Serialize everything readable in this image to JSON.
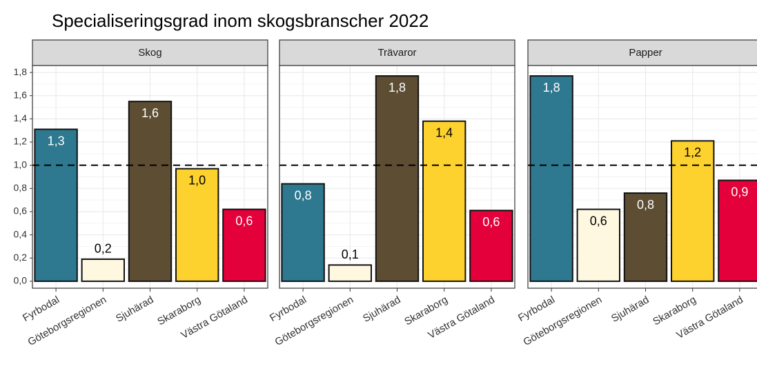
{
  "title": "Specialiseringsgrad inom skogsbranscher  2022",
  "chart_data": [
    {
      "type": "bar",
      "title": "Skog",
      "categories": [
        "Fyrbodal",
        "Göteborgsregionen",
        "Sjuhärad",
        "Skaraborg",
        "Västra Götaland"
      ],
      "values": [
        1.31,
        0.19,
        1.55,
        0.97,
        0.62
      ],
      "value_labels": [
        "1,3",
        "0,2",
        "1,6",
        "1,0",
        "0,6"
      ],
      "colors": [
        "#2e7890",
        "#fff8e1",
        "#5c4d33",
        "#fdd22e",
        "#e4003a"
      ],
      "reference_line": 1,
      "ylim": [
        -0.06,
        1.86
      ],
      "yticks": [
        {
          "value": 0,
          "label": "0,0"
        },
        {
          "value": 0.2,
          "label": "0,2"
        },
        {
          "value": 0.4,
          "label": "0,4"
        },
        {
          "value": 0.6,
          "label": "0,6"
        },
        {
          "value": 0.8,
          "label": "0,8"
        },
        {
          "value": 1,
          "label": "1,0"
        },
        {
          "value": 1.2,
          "label": "1,2"
        },
        {
          "value": 1.4,
          "label": "1,4"
        },
        {
          "value": 1.6,
          "label": "1,6"
        },
        {
          "value": 1.8,
          "label": "1,8"
        }
      ]
    },
    {
      "type": "bar",
      "title": "Trävaror",
      "categories": [
        "Fyrbodal",
        "Göteborgsregionen",
        "Sjuhärad",
        "Skaraborg",
        "Västra Götaland"
      ],
      "values": [
        0.84,
        0.14,
        1.77,
        1.38,
        0.61
      ],
      "value_labels": [
        "0,8",
        "0,1",
        "1,8",
        "1,4",
        "0,6"
      ],
      "colors": [
        "#2e7890",
        "#fff8e1",
        "#5c4d33",
        "#fdd22e",
        "#e4003a"
      ],
      "reference_line": 1
    },
    {
      "type": "bar",
      "title": "Papper",
      "categories": [
        "Fyrbodal",
        "Göteborgsregionen",
        "Sjuhärad",
        "Skaraborg",
        "Västra Götaland"
      ],
      "values": [
        1.77,
        0.62,
        0.76,
        1.21,
        0.87
      ],
      "value_labels": [
        "1,8",
        "0,6",
        "0,8",
        "1,2",
        "0,9"
      ],
      "colors": [
        "#2e7890",
        "#fff8e1",
        "#5c4d33",
        "#fdd22e",
        "#e4003a"
      ],
      "reference_line": 1
    }
  ]
}
